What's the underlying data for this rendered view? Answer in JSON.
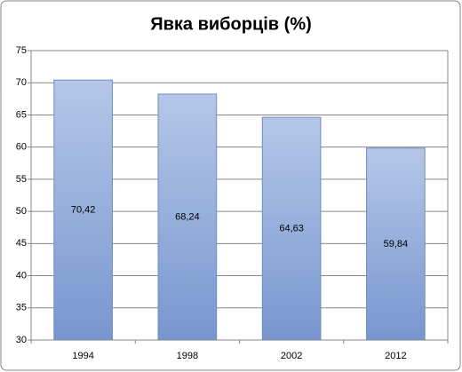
{
  "chart_data": {
    "type": "bar",
    "title": "Явка виборців (%)",
    "categories": [
      "1994",
      "1998",
      "2002",
      "2012"
    ],
    "values": [
      70.42,
      68.24,
      64.63,
      59.84
    ],
    "value_labels": [
      "70,42",
      "68,24",
      "64,63",
      "59,84"
    ],
    "color": "#8aa6d8",
    "ylim": [
      30,
      75
    ],
    "yticks": [
      30,
      35,
      40,
      45,
      50,
      55,
      60,
      65,
      70,
      75
    ],
    "grid": true
  }
}
